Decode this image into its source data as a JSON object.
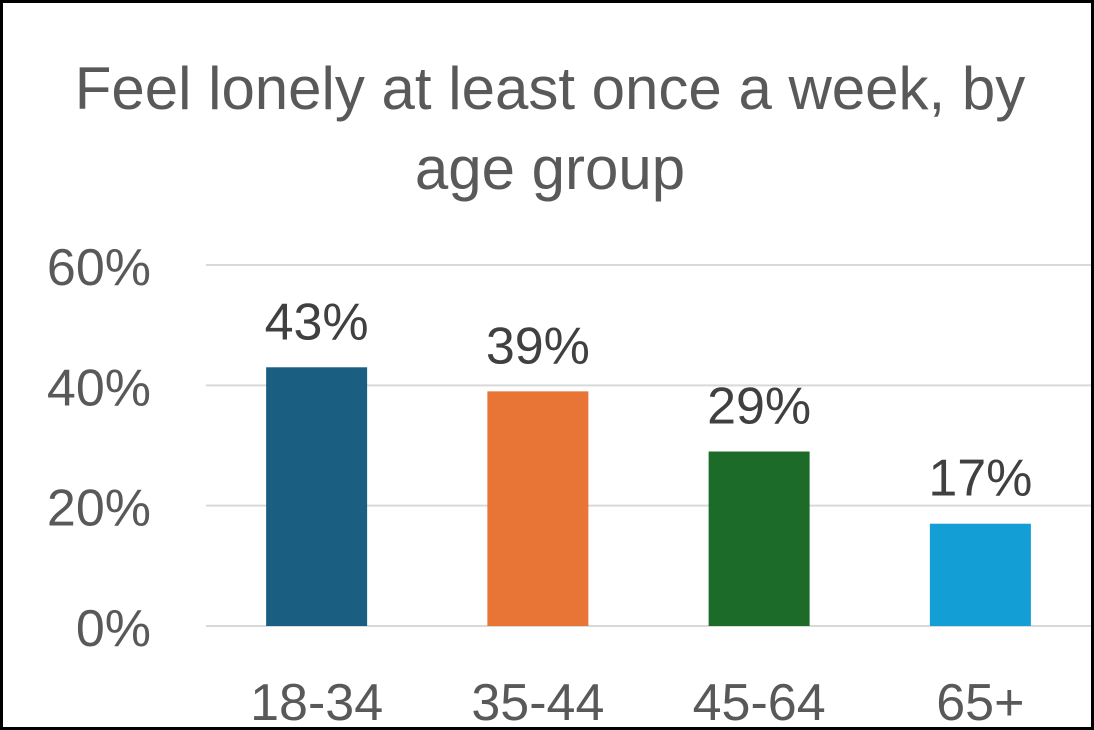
{
  "chart_data": {
    "type": "bar",
    "title": "Feel lonely at least once a week, by age group",
    "categories": [
      "18-34",
      "35-44",
      "45-64",
      "65+"
    ],
    "values": [
      43,
      39,
      29,
      17
    ],
    "data_labels": [
      "43%",
      "39%",
      "29%",
      "17%"
    ],
    "colors": [
      "#1a5e82",
      "#e87435",
      "#1c6b29",
      "#139fd6"
    ],
    "ylim": [
      0,
      60
    ],
    "yticks": [
      0,
      20,
      40,
      60
    ],
    "ytick_labels": [
      "0%",
      "20%",
      "40%",
      "60%"
    ],
    "grid": true,
    "legend": "none"
  }
}
